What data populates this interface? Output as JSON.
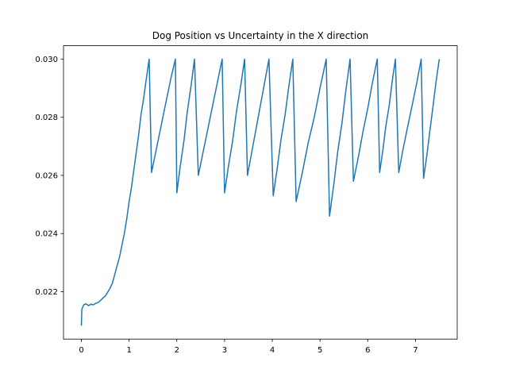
{
  "chart_data": {
    "type": "line",
    "title": "Dog Position vs Uncertainty in the X direction",
    "x": [
      0,
      0.01,
      0.05,
      0.1,
      0.15,
      0.2,
      0.25,
      0.3,
      0.35,
      0.4,
      0.45,
      0.5,
      0.55,
      0.6,
      0.65,
      0.7,
      0.75,
      0.8,
      0.85,
      0.9,
      0.95,
      1.0,
      1.05,
      1.1,
      1.15,
      1.2,
      1.25,
      1.3,
      1.35,
      1.42,
      1.47,
      1.57,
      1.67,
      1.77,
      1.87,
      1.97,
      2.0,
      2.07,
      2.15,
      2.22,
      2.3,
      2.37,
      2.45,
      2.55,
      2.65,
      2.75,
      2.85,
      2.95,
      3.0,
      3.08,
      3.17,
      3.25,
      3.34,
      3.42,
      3.48,
      3.57,
      3.66,
      3.75,
      3.84,
      3.93,
      4.02,
      4.1,
      4.18,
      4.27,
      4.35,
      4.43,
      4.5,
      4.63,
      4.75,
      4.88,
      5.0,
      5.13,
      5.2,
      5.29,
      5.37,
      5.46,
      5.54,
      5.63,
      5.7,
      5.8,
      5.9,
      6.0,
      6.1,
      6.2,
      6.25,
      6.32,
      6.38,
      6.45,
      6.51,
      6.58,
      6.65,
      6.74,
      6.84,
      6.93,
      7.03,
      7.12,
      7.17,
      7.24,
      7.3,
      7.37,
      7.43,
      7.5
    ],
    "series": [
      {
        "name": "uncertainty",
        "color": "#1f77b4",
        "values": [
          0.02083,
          0.0214,
          0.02155,
          0.02158,
          0.02152,
          0.02157,
          0.02155,
          0.0216,
          0.02163,
          0.0217,
          0.02178,
          0.02185,
          0.02198,
          0.02212,
          0.0223,
          0.0226,
          0.0229,
          0.0232,
          0.0236,
          0.024,
          0.0245,
          0.0251,
          0.0256,
          0.0262,
          0.0268,
          0.0274,
          0.0281,
          0.0286,
          0.0292,
          0.03,
          0.0261,
          0.0269,
          0.0277,
          0.0285,
          0.0293,
          0.03,
          0.0254,
          0.0263,
          0.0272,
          0.0282,
          0.0291,
          0.03,
          0.026,
          0.0268,
          0.0276,
          0.0284,
          0.0292,
          0.03,
          0.0254,
          0.0263,
          0.0272,
          0.0282,
          0.0291,
          0.03,
          0.026,
          0.0268,
          0.0276,
          0.0284,
          0.0292,
          0.03,
          0.0253,
          0.0262,
          0.0272,
          0.0281,
          0.0291,
          0.03,
          0.0251,
          0.0261,
          0.0271,
          0.028,
          0.029,
          0.03,
          0.0246,
          0.0257,
          0.0268,
          0.0278,
          0.0289,
          0.03,
          0.0258,
          0.0266,
          0.0275,
          0.0283,
          0.0292,
          0.03,
          0.0261,
          0.0269,
          0.0277,
          0.0284,
          0.0292,
          0.03,
          0.0261,
          0.0269,
          0.0277,
          0.0284,
          0.0292,
          0.03,
          0.0259,
          0.0267,
          0.0275,
          0.0284,
          0.0292,
          0.03
        ]
      }
    ],
    "xlim": [
      -0.375,
      7.875
    ],
    "xticks": [
      0,
      1,
      2,
      3,
      4,
      5,
      6,
      7
    ],
    "ylim": [
      0.02037,
      0.03046
    ],
    "yticks": [
      0.022,
      0.024,
      0.026,
      0.028,
      {
        "value": 0.03,
        "label": "0.030"
      }
    ]
  }
}
